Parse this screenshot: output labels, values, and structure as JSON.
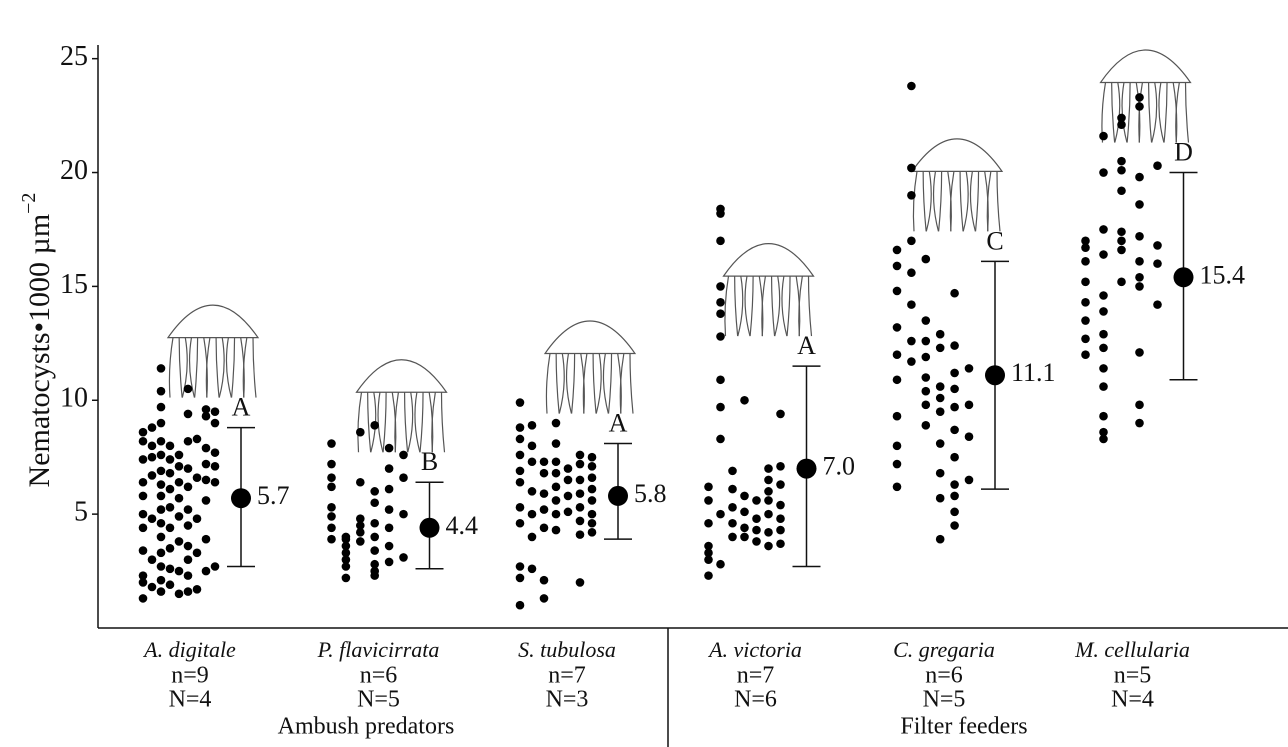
{
  "chart_data": {
    "type": "strip",
    "y_label": "Nematocysts•1000 µm",
    "y_label_sup": "−2",
    "ylim": [
      0,
      25.6
    ],
    "yticks": [
      5,
      10,
      15,
      20,
      25
    ],
    "groups": [
      {
        "name": "A. digitale",
        "n_label": "n=9",
        "N_label": "N=4",
        "letter": "A",
        "mean": 5.7,
        "mean_label": "5.7",
        "lower": 2.7,
        "upper": 8.8,
        "individuals": [
          [
            1.3,
            2.0,
            2.3,
            3.4,
            4.4,
            5.0,
            5.8,
            6.4,
            7.4,
            8.2,
            8.6
          ],
          [
            1.8,
            3.0,
            4.8,
            6.7,
            7.5,
            8.0,
            8.8
          ],
          [
            1.6,
            2.1,
            2.7,
            3.3,
            4.0,
            4.6,
            5.2,
            5.8,
            6.3,
            6.9,
            7.6,
            8.2,
            9.0,
            9.7,
            10.4,
            11.4
          ],
          [
            1.9,
            2.6,
            3.5,
            4.4,
            5.3,
            6.1,
            6.8,
            7.4,
            8.0
          ],
          [
            1.5,
            2.5,
            3.8,
            4.9,
            5.7,
            6.4,
            7.1,
            7.6
          ],
          [
            1.6,
            2.3,
            3.0,
            3.6,
            4.5,
            5.2,
            6.2,
            7.0,
            8.2,
            9.4,
            10.5
          ],
          [
            1.7,
            3.3,
            4.8,
            6.6,
            8.3
          ],
          [
            2.5,
            3.9,
            5.6,
            6.5,
            7.2,
            7.9,
            9.3,
            9.6
          ],
          [
            2.7,
            6.4,
            7.1,
            7.7,
            9.0,
            9.5
          ]
        ]
      },
      {
        "name": "P. flavicirrata",
        "n_label": "n=6",
        "N_label": "N=5",
        "letter": "B",
        "mean": 4.4,
        "mean_label": "4.4",
        "lower": 2.6,
        "upper": 6.4,
        "individuals": [
          [
            3.9,
            4.4,
            4.9,
            5.3,
            6.2,
            6.6,
            7.2,
            8.1
          ],
          [
            2.2,
            2.7,
            3.0,
            3.3,
            3.6,
            3.9,
            4.0
          ],
          [
            3.8,
            4.2,
            4.5,
            4.8,
            6.4,
            8.6
          ],
          [
            2.3,
            2.5,
            2.8,
            3.4,
            4.0,
            4.6,
            5.5,
            6.0,
            8.9
          ],
          [
            2.9,
            3.6,
            4.4,
            5.2,
            6.1,
            7.0,
            7.9
          ],
          [
            3.1,
            5.0,
            6.6,
            7.6
          ]
        ]
      },
      {
        "name": "S. tubulosa",
        "n_label": "n=7",
        "N_label": "N=3",
        "letter": "A",
        "mean": 5.8,
        "mean_label": "5.8",
        "lower": 3.9,
        "upper": 8.1,
        "individuals": [
          [
            1.0,
            2.2,
            2.7,
            4.6,
            5.3,
            6.4,
            6.9,
            7.6,
            8.3,
            8.8,
            9.9
          ],
          [
            2.6,
            4.0,
            5.0,
            6.0,
            7.3,
            8.0,
            8.9
          ],
          [
            1.3,
            2.1,
            4.4,
            5.2,
            5.9,
            6.8,
            7.3
          ],
          [
            4.3,
            5.0,
            5.6,
            6.2,
            6.8,
            7.3,
            8.1,
            9.0
          ],
          [
            5.1,
            5.8,
            6.5,
            7.0
          ],
          [
            2.0,
            4.1,
            4.7,
            5.3,
            5.9,
            6.5,
            7.2,
            7.6
          ],
          [
            4.2,
            4.6,
            5.0,
            5.6,
            6.1,
            6.6,
            7.1,
            7.5
          ]
        ]
      },
      {
        "name": "A. victoria",
        "n_label": "n=7",
        "N_label": "N=6",
        "letter": "A",
        "mean": 7.0,
        "mean_label": "7.0",
        "lower": 2.7,
        "upper": 11.5,
        "individuals": [
          [
            2.3,
            3.0,
            3.3,
            3.6,
            4.6,
            5.6,
            6.2
          ],
          [
            2.8,
            5.0,
            8.3,
            9.7,
            10.9,
            12.8,
            13.8,
            14.3,
            15.0,
            17.0,
            18.2,
            18.4
          ],
          [
            4.0,
            4.6,
            5.3,
            6.1,
            6.9
          ],
          [
            4.0,
            4.4,
            5.1,
            5.8,
            10.0
          ],
          [
            3.8,
            4.3,
            4.8,
            5.6
          ],
          [
            3.6,
            4.2,
            5.0,
            5.6,
            6.0,
            6.5,
            7.0
          ],
          [
            3.7,
            4.3,
            4.8,
            5.4,
            6.3,
            7.1,
            9.4
          ]
        ]
      },
      {
        "name": "C. gregaria",
        "n_label": "n=6",
        "N_label": "N=5",
        "letter": "C",
        "mean": 11.1,
        "mean_label": "11.1",
        "lower": 6.1,
        "upper": 16.1,
        "individuals": [
          [
            6.2,
            7.2,
            8.0,
            9.3,
            10.9,
            12.0,
            13.2,
            14.8,
            15.9,
            16.6
          ],
          [
            11.7,
            12.6,
            14.2,
            15.6,
            17.0,
            19.0,
            20.2,
            23.8
          ],
          [
            8.9,
            9.8,
            10.4,
            11.0,
            11.9,
            12.6,
            13.5,
            16.2
          ],
          [
            3.9,
            5.7,
            6.8,
            8.1,
            9.5,
            10.1,
            10.6,
            12.3,
            12.9
          ],
          [
            4.5,
            5.1,
            5.8,
            6.3,
            7.5,
            8.7,
            9.7,
            10.5,
            11.2,
            12.4,
            14.7
          ],
          [
            6.5,
            8.4,
            9.8,
            11.4
          ]
        ]
      },
      {
        "name": "M. cellularia",
        "n_label": "n=5",
        "N_label": "N=4",
        "letter": "D",
        "mean": 15.4,
        "mean_label": "15.4",
        "lower": 10.9,
        "upper": 20.0,
        "individuals": [
          [
            12.0,
            12.7,
            13.5,
            14.3,
            15.2,
            16.1,
            16.7,
            17.0
          ],
          [
            8.3,
            8.6,
            9.3,
            10.6,
            11.4,
            12.3,
            12.9,
            13.9,
            14.6,
            16.4,
            17.5,
            20.0,
            21.6
          ],
          [
            15.2,
            16.6,
            17.0,
            17.4,
            19.2,
            20.1,
            20.5,
            22.1,
            22.4
          ],
          [
            9.0,
            9.8,
            12.1,
            15.0,
            15.4,
            16.1,
            17.2,
            18.6,
            19.8,
            22.9,
            23.3
          ],
          [
            14.2,
            16.0,
            16.8,
            20.3
          ]
        ]
      }
    ],
    "group_labels": [
      {
        "label": "Ambush predators"
      },
      {
        "label": "Filter feeders"
      }
    ]
  }
}
